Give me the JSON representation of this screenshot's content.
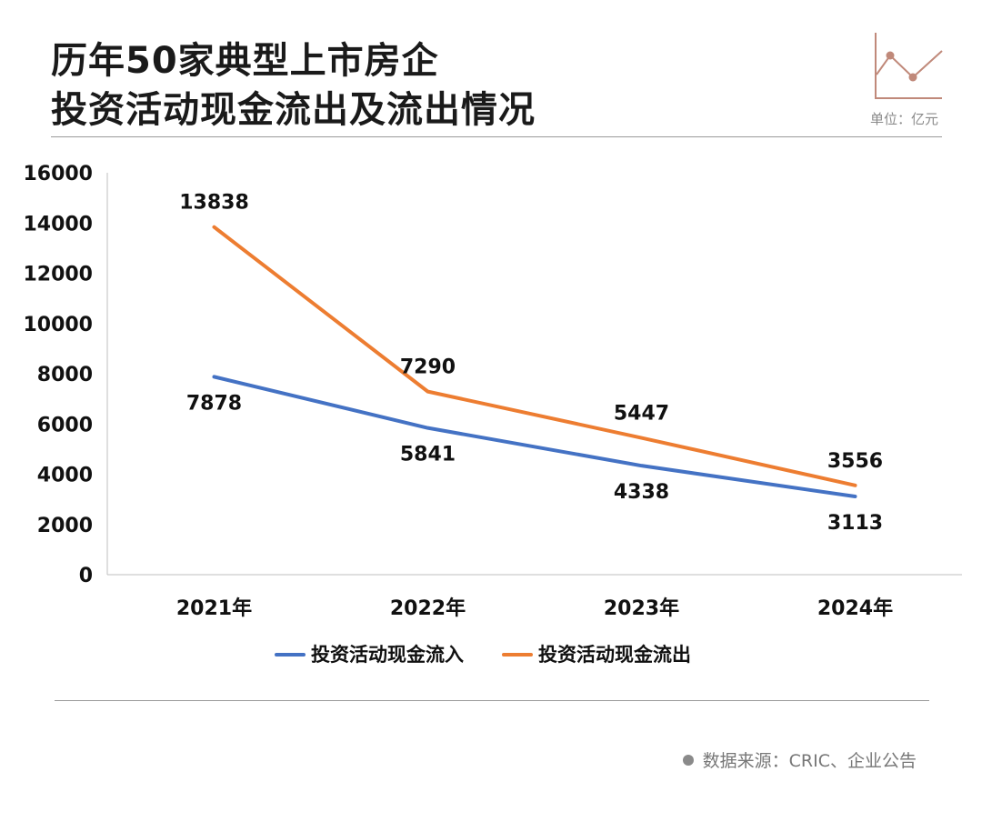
{
  "header": {
    "title_line1": "历年50家典型上市房企",
    "title_line2": "投资活动现金流出及流出情况",
    "unit": "单位：亿元"
  },
  "footer": {
    "source": "数据来源：CRIC、企业公告"
  },
  "colors": {
    "inflow": "#4472c4",
    "outflow": "#ed7d31",
    "icon": "#c0897a"
  },
  "icon": "line-chart-icon",
  "chart_data": {
    "type": "line",
    "categories": [
      "2021年",
      "2022年",
      "2023年",
      "2024年"
    ],
    "series": [
      {
        "name": "投资活动现金流入",
        "values": [
          7878,
          5841,
          4338,
          3113
        ]
      },
      {
        "name": "投资活动现金流出",
        "values": [
          13838,
          7290,
          5447,
          3556
        ]
      }
    ],
    "ylim": [
      0,
      16000
    ],
    "yticks": [
      "0",
      "2000",
      "4000",
      "6000",
      "8000",
      "10000",
      "12000",
      "14000",
      "16000"
    ],
    "legend": "bottom",
    "grid": false
  }
}
